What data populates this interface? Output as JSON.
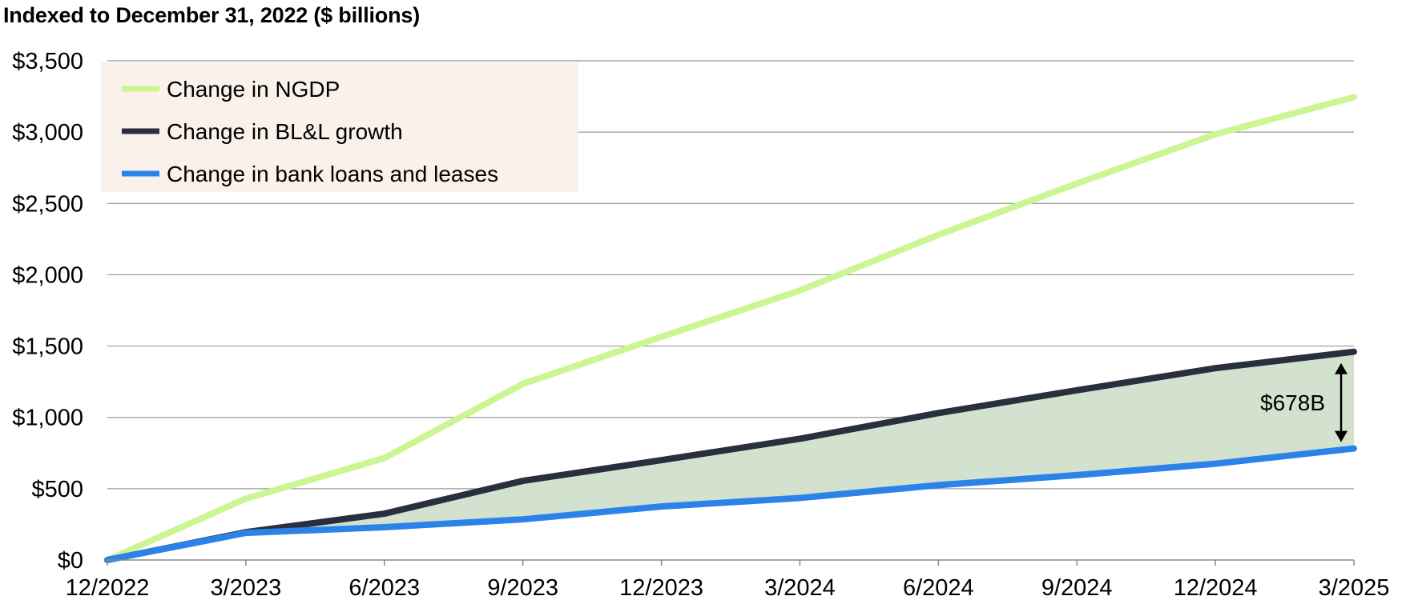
{
  "chart_data": {
    "type": "line",
    "title": "Indexed to December 31, 2022 ($ billions)",
    "xlabel": "",
    "ylabel": "",
    "categories": [
      "12/2022",
      "3/2023",
      "6/2023",
      "9/2023",
      "12/2023",
      "3/2024",
      "6/2024",
      "9/2024",
      "12/2024",
      "3/2025"
    ],
    "ylim": [
      0,
      3500
    ],
    "yticks": [
      0,
      500,
      1000,
      1500,
      2000,
      2500,
      3000,
      3500
    ],
    "ytick_labels": [
      "$0",
      "$500",
      "$1,000",
      "$1,500",
      "$2,000",
      "$2,500",
      "$3,000",
      "$3,500"
    ],
    "grid": true,
    "legend_position": "top-left",
    "series": [
      {
        "name": "Change in NGDP",
        "color": "#ccf593",
        "values": [
          0,
          430,
          715,
          1235,
          1565,
          1890,
          2280,
          2640,
          2985,
          3245
        ]
      },
      {
        "name": "Change in BL&L growth",
        "color": "#2a2f3d",
        "values": [
          0,
          195,
          325,
          555,
          700,
          850,
          1030,
          1190,
          1345,
          1460
        ]
      },
      {
        "name": "Change in bank loans and leases",
        "color": "#2b83ea",
        "values": [
          0,
          190,
          230,
          285,
          375,
          435,
          525,
          595,
          675,
          782
        ]
      }
    ],
    "shaded_area": {
      "between": [
        "Change in BL&L growth",
        "Change in bank loans and leases"
      ],
      "color": "#d3e1cf"
    },
    "annotation": {
      "label": "$678B",
      "x": "3/2025"
    },
    "colors": {
      "gridline": "#999999",
      "legend_background": "#f9f1ea",
      "axis": "#888888"
    }
  }
}
